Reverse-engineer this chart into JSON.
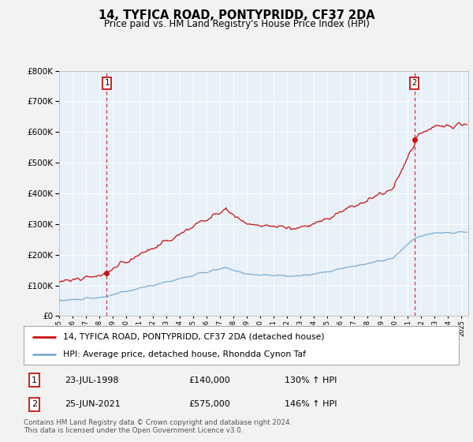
{
  "title": "14, TYFICA ROAD, PONTYPRIDD, CF37 2DA",
  "subtitle": "Price paid vs. HM Land Registry's House Price Index (HPI)",
  "ylim": [
    0,
    800000
  ],
  "yticks": [
    0,
    100000,
    200000,
    300000,
    400000,
    500000,
    600000,
    700000,
    800000
  ],
  "ytick_labels": [
    "£0",
    "£100K",
    "£200K",
    "£300K",
    "£400K",
    "£500K",
    "£600K",
    "£700K",
    "£800K"
  ],
  "xlim_start": 1995.0,
  "xlim_end": 2025.5,
  "hpi_color": "#7aadd4",
  "price_color": "#cc1111",
  "background_color": "#e8f0f8",
  "grid_color": "#ffffff",
  "sale1_date": 1998.55,
  "sale1_price": 140000,
  "sale2_date": 2021.48,
  "sale2_price": 575000,
  "sale1_display": "23-JUL-1998",
  "sale1_price_display": "£140,000",
  "sale1_hpi_display": "130% ↑ HPI",
  "sale2_display": "25-JUN-2021",
  "sale2_price_display": "£575,000",
  "sale2_hpi_display": "146% ↑ HPI",
  "legend_line1": "14, TYFICA ROAD, PONTYPRIDD, CF37 2DA (detached house)",
  "legend_line2": "HPI: Average price, detached house, Rhondda Cynon Taf",
  "footer": "Contains HM Land Registry data © Crown copyright and database right 2024.\nThis data is licensed under the Open Government Licence v3.0."
}
